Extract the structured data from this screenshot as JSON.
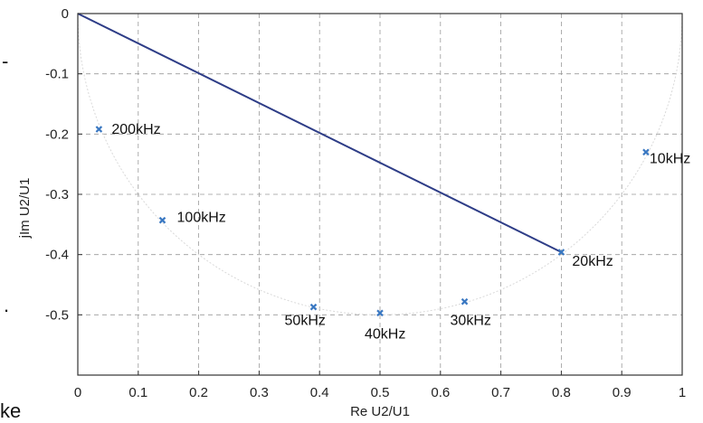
{
  "chart_data": {
    "type": "scatter",
    "xlabel": "Re U2/U1",
    "ylabel": "jIm U2/U1",
    "xlim": [
      0,
      1
    ],
    "ylim": [
      -0.6,
      0
    ],
    "xticks": [
      0,
      0.1,
      0.2,
      0.3,
      0.4,
      0.5,
      0.6,
      0.7,
      0.8,
      0.9,
      1
    ],
    "yticks": [
      0,
      -0.1,
      -0.2,
      -0.3,
      -0.4,
      -0.5
    ],
    "xtick_labels": [
      "0",
      "0.1",
      "0.2",
      "0.3",
      "0.4",
      "0.5",
      "0.6",
      "0.7",
      "0.8",
      "0.9",
      "1"
    ],
    "ytick_labels": [
      "0",
      "-0.1",
      "-0.2",
      "-0.3",
      "-0.4",
      "-0.5"
    ],
    "grid": true,
    "points": [
      {
        "label": "10kHz",
        "x": 0.94,
        "y": -0.23
      },
      {
        "label": "20kHz",
        "x": 0.8,
        "y": -0.396
      },
      {
        "label": "30kHz",
        "x": 0.64,
        "y": -0.478
      },
      {
        "label": "40kHz",
        "x": 0.5,
        "y": -0.497
      },
      {
        "label": "50kHz",
        "x": 0.39,
        "y": -0.487
      },
      {
        "label": "100kHz",
        "x": 0.14,
        "y": -0.343
      },
      {
        "label": "200kHz",
        "x": 0.035,
        "y": -0.192
      }
    ],
    "line": {
      "from": [
        0,
        0
      ],
      "to": [
        0.8,
        -0.396
      ],
      "color": "#2e3d87"
    },
    "circle_locus": {
      "center": [
        0.5,
        0
      ],
      "radius": 0.5,
      "color": "#d9d9d9"
    },
    "marker_color": "#3a78c2"
  },
  "margin_fragments": [
    "-",
    ".",
    "ke"
  ]
}
